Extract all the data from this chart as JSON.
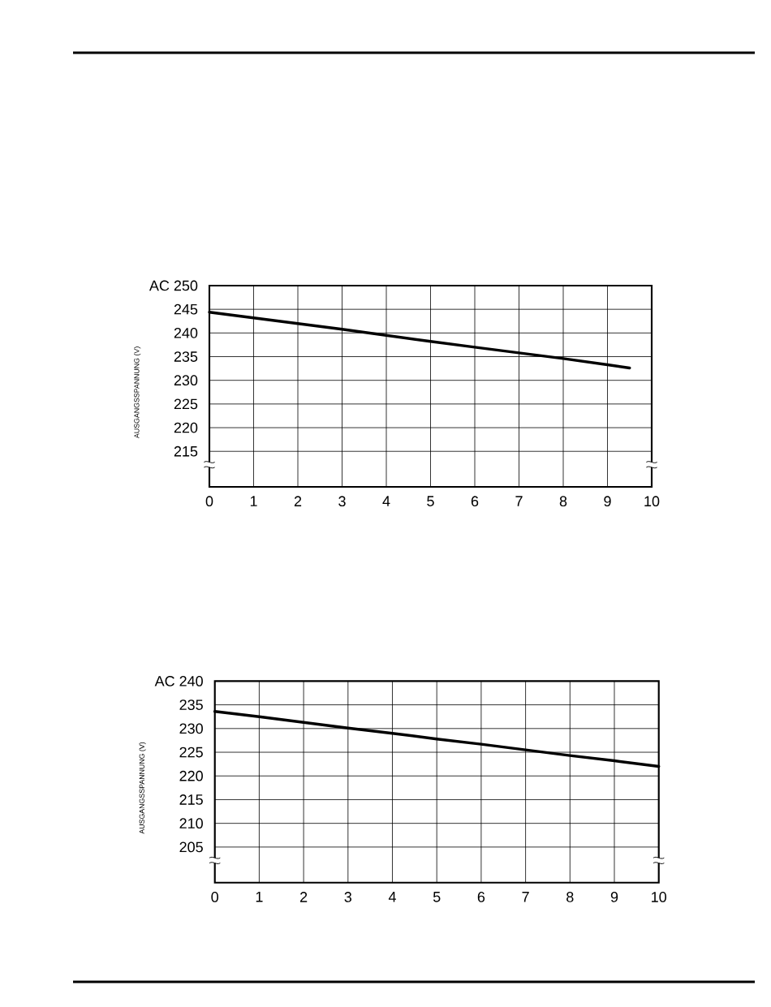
{
  "chart_data": [
    {
      "type": "line",
      "x": [
        0,
        1,
        2,
        3,
        4,
        5,
        6,
        7,
        8,
        9,
        9.5
      ],
      "series": [
        {
          "color": "#000000",
          "values": [
            244.4,
            243.2,
            242.0,
            240.8,
            239.5,
            238.2,
            237.0,
            235.8,
            234.6,
            233.3,
            232.6
          ]
        }
      ],
      "xlim": [
        0,
        10
      ],
      "xticks": [
        0,
        1,
        2,
        3,
        4,
        5,
        6,
        7,
        8,
        9,
        10
      ],
      "ylim": [
        207.5,
        250
      ],
      "yticks": [
        215,
        220,
        225,
        230,
        235,
        240,
        245,
        {
          "value": 250,
          "label": "AC 250"
        }
      ],
      "ylabel": "AUSGANGSSPANNUNG (V)",
      "grid": true
    },
    {
      "type": "line",
      "x": [
        0,
        1,
        2,
        3,
        4,
        5,
        6,
        7,
        8,
        9,
        10
      ],
      "series": [
        {
          "color": "#000000",
          "values": [
            233.6,
            232.5,
            231.3,
            230.1,
            229.0,
            227.8,
            226.7,
            225.5,
            224.3,
            223.2,
            222.0
          ]
        }
      ],
      "xlim": [
        0,
        10
      ],
      "xticks": [
        0,
        1,
        2,
        3,
        4,
        5,
        6,
        7,
        8,
        9,
        10
      ],
      "ylim": [
        197.5,
        240
      ],
      "yticks": [
        205,
        210,
        215,
        220,
        225,
        230,
        235,
        {
          "value": 240,
          "label": "AC 240"
        }
      ],
      "ylabel": "AUSGANGSSPANNUNG (V)",
      "grid": true
    }
  ]
}
